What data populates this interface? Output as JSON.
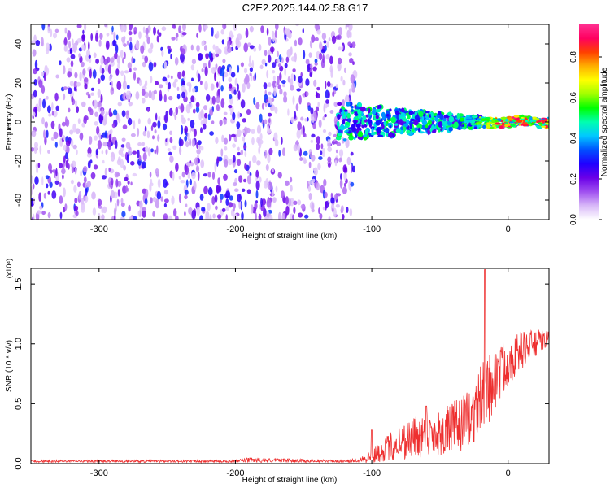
{
  "title": "C2E2.2025.144.02.58.G17",
  "chart_data": [
    {
      "type": "heatmap",
      "title": "C2E2.2025.144.02.58.G17",
      "xlabel": "Height of straight line (km)",
      "ylabel": "Frequency (Hz)",
      "xlim": [
        -350,
        30
      ],
      "ylim": [
        -50,
        50
      ],
      "xticks": [
        -300,
        -200,
        -100,
        0
      ],
      "xtick_labels": [
        "-300",
        "-200",
        "-100",
        "0"
      ],
      "yticks": [
        -40,
        -20,
        0,
        20,
        40
      ],
      "ytick_labels": [
        "-40",
        "-20",
        "0",
        "20",
        "40"
      ],
      "colorbar": {
        "label": "Normalized spectral amplitude",
        "range": [
          0,
          0.96
        ],
        "ticks": [
          0,
          0.2,
          0.4,
          0.6,
          0.8
        ],
        "tick_labels": [
          "0.0",
          "0.2",
          "0.4",
          "0.6",
          "0.8"
        ],
        "colors": [
          "#ffffff",
          "#d8b8f8",
          "#a050f0",
          "#6a00e8",
          "#2000ff",
          "#0050ff",
          "#00c8ff",
          "#00ffb0",
          "#00ff00",
          "#a0ff00",
          "#ffff00",
          "#ffb000",
          "#ff4000",
          "#ff0060",
          "#ff3090"
        ]
      },
      "regions": [
        {
          "x_range": [
            -350,
            -112
          ],
          "f_range": [
            -50,
            50
          ],
          "amplitude": 0.12,
          "description_level": "diffuse noise"
        },
        {
          "x_range": [
            -125,
            -20
          ],
          "f_range": [
            -10,
            10
          ],
          "amplitude": 0.35
        },
        {
          "x_range": [
            -20,
            30
          ],
          "f_range": [
            -3,
            3
          ],
          "amplitude": 0.9
        }
      ]
    },
    {
      "type": "line",
      "xlabel": "Height of straight line (km)",
      "ylabel": "SNR (10 * v/v)",
      "y_multiplier": "(x10⁴)",
      "xlim": [
        -350,
        30
      ],
      "ylim": [
        0,
        1.63
      ],
      "xticks": [
        -300,
        -200,
        -100,
        0
      ],
      "xtick_labels": [
        "-300",
        "-200",
        "-100",
        "0"
      ],
      "yticks": [
        0,
        0.5,
        1.0,
        1.5
      ],
      "ytick_labels": [
        "0.0",
        "0.5",
        "1.0",
        "1.5"
      ],
      "color": "#ee3030",
      "envelope": {
        "x": [
          -350,
          -200,
          -190,
          -120,
          -110,
          -100,
          -90,
          -80,
          -70,
          -60,
          -50,
          -40,
          -30,
          -25,
          -20,
          -15,
          -10,
          -5,
          0,
          10,
          20,
          30
        ],
        "mean": [
          0.02,
          0.02,
          0.03,
          0.02,
          0.03,
          0.06,
          0.12,
          0.18,
          0.22,
          0.24,
          0.26,
          0.3,
          0.36,
          0.42,
          0.55,
          0.62,
          0.7,
          0.78,
          0.85,
          0.95,
          1.0,
          1.05
        ],
        "spread": [
          0.01,
          0.01,
          0.02,
          0.01,
          0.02,
          0.06,
          0.1,
          0.16,
          0.18,
          0.2,
          0.2,
          0.22,
          0.24,
          0.26,
          0.28,
          0.3,
          0.28,
          0.24,
          0.2,
          0.16,
          0.12,
          0.06
        ]
      },
      "peaks": [
        {
          "x": -17,
          "y": 1.62
        },
        {
          "x": -60,
          "y": 0.48
        },
        {
          "x": -100,
          "y": 0.28
        }
      ]
    }
  ]
}
